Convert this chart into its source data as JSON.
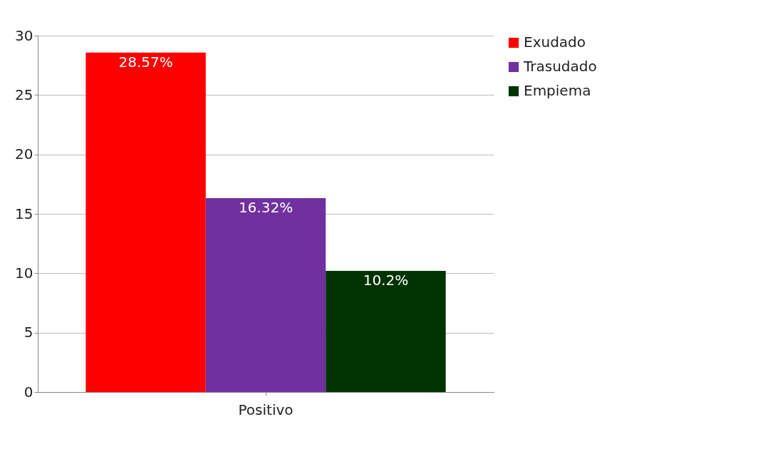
{
  "chart_data": {
    "type": "bar",
    "categories": [
      "Positivo"
    ],
    "series": [
      {
        "name": "Exudado",
        "color": "#ff0000",
        "values": [
          28.57
        ],
        "value_labels": [
          "28.57%"
        ]
      },
      {
        "name": "Trasudado",
        "color": "#7030a0",
        "values": [
          16.32
        ],
        "value_labels": [
          "16.32%"
        ]
      },
      {
        "name": "Empiema",
        "color": "#003300",
        "values": [
          10.2
        ],
        "value_labels": [
          "10.2%"
        ]
      }
    ],
    "ylim": [
      0,
      30
    ],
    "yticks": [
      0,
      5,
      10,
      15,
      20,
      25,
      30
    ],
    "grid": "y",
    "legend": "right"
  }
}
